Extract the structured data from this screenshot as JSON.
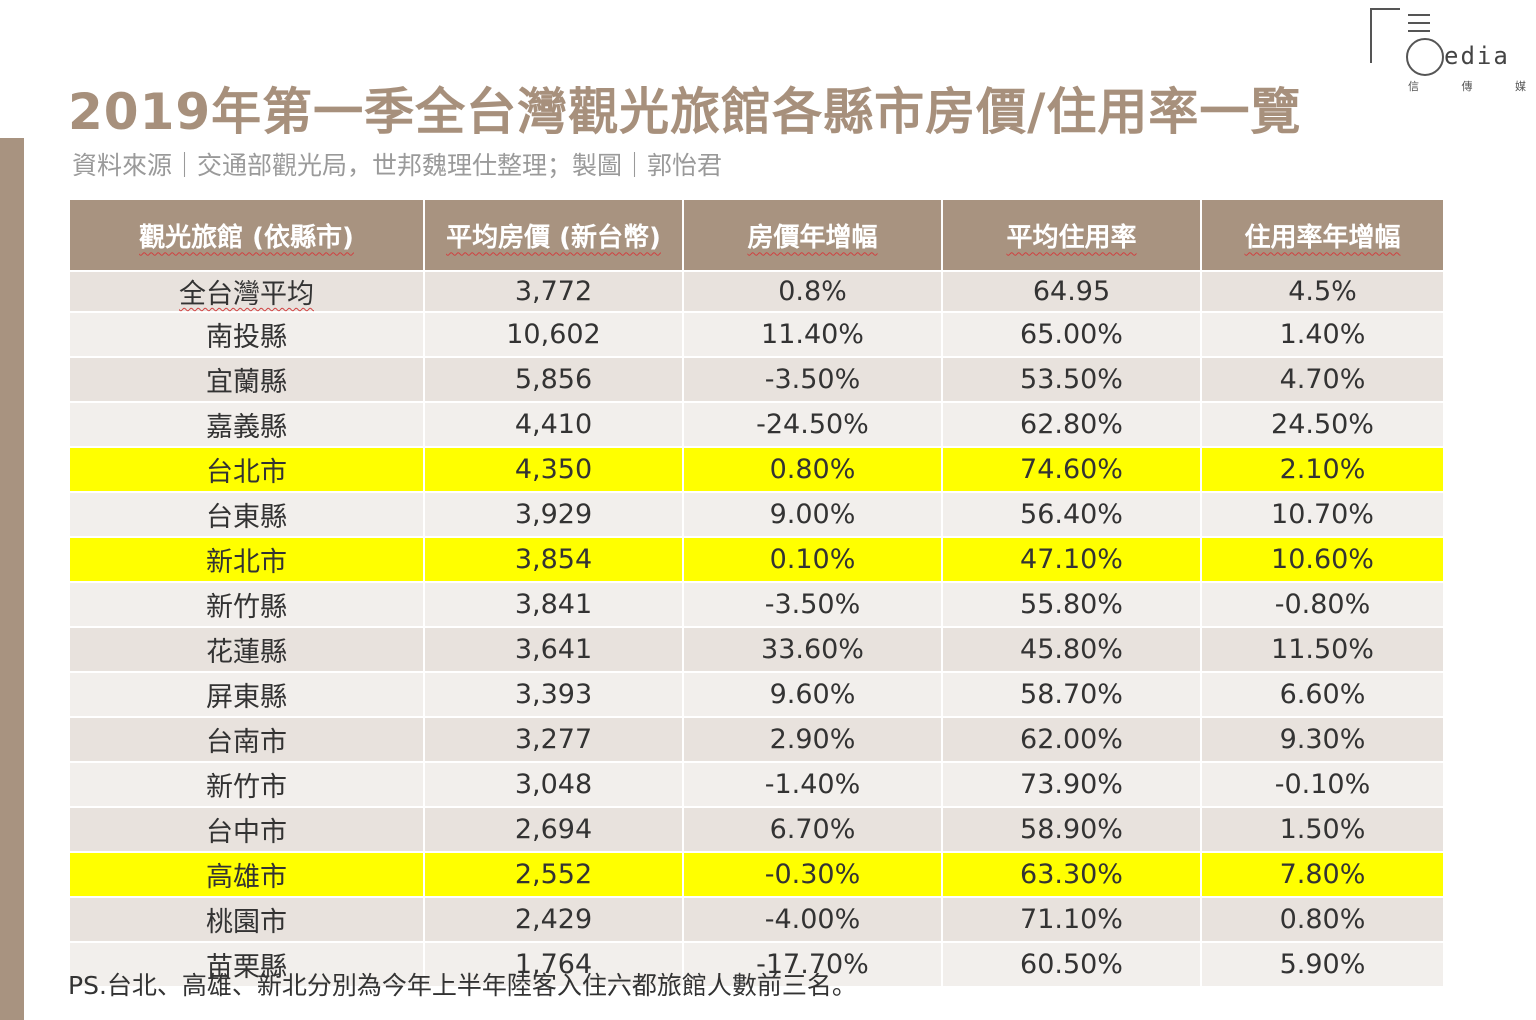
{
  "title": "2019年第一季全台灣觀光旅館各縣市房價/住用率一覽",
  "subtitle": "資料來源｜交通部觀光局，世邦魏理仕整理；製圖｜郭怡君",
  "logo": {
    "word": "edia",
    "chars": [
      "信",
      "傳",
      "媒"
    ]
  },
  "table": {
    "headers": [
      "觀光旅館 (依縣市)",
      "平均房價 (新台幣)",
      "房價年增幅",
      "平均住用率",
      "住用率年增幅"
    ],
    "rows": [
      {
        "county": "全台灣平均",
        "price": "3,772",
        "price_growth": "0.8%",
        "occupancy": "64.95",
        "occupancy_growth": "4.5%",
        "highlight": false
      },
      {
        "county": "南投縣",
        "price": "10,602",
        "price_growth": "11.40%",
        "occupancy": "65.00%",
        "occupancy_growth": "1.40%",
        "highlight": false
      },
      {
        "county": "宜蘭縣",
        "price": "5,856",
        "price_growth": "-3.50%",
        "occupancy": "53.50%",
        "occupancy_growth": "4.70%",
        "highlight": false
      },
      {
        "county": "嘉義縣",
        "price": "4,410",
        "price_growth": "-24.50%",
        "occupancy": "62.80%",
        "occupancy_growth": "24.50%",
        "highlight": false
      },
      {
        "county": "台北市",
        "price": "4,350",
        "price_growth": "0.80%",
        "occupancy": "74.60%",
        "occupancy_growth": "2.10%",
        "highlight": true
      },
      {
        "county": "台東縣",
        "price": "3,929",
        "price_growth": "9.00%",
        "occupancy": "56.40%",
        "occupancy_growth": "10.70%",
        "highlight": false
      },
      {
        "county": "新北市",
        "price": "3,854",
        "price_growth": "0.10%",
        "occupancy": "47.10%",
        "occupancy_growth": "10.60%",
        "highlight": true
      },
      {
        "county": "新竹縣",
        "price": "3,841",
        "price_growth": "-3.50%",
        "occupancy": "55.80%",
        "occupancy_growth": "-0.80%",
        "highlight": false
      },
      {
        "county": "花蓮縣",
        "price": "3,641",
        "price_growth": "33.60%",
        "occupancy": "45.80%",
        "occupancy_growth": "11.50%",
        "highlight": false
      },
      {
        "county": "屏東縣",
        "price": "3,393",
        "price_growth": "9.60%",
        "occupancy": "58.70%",
        "occupancy_growth": "6.60%",
        "highlight": false
      },
      {
        "county": "台南市",
        "price": "3,277",
        "price_growth": "2.90%",
        "occupancy": "62.00%",
        "occupancy_growth": "9.30%",
        "highlight": false
      },
      {
        "county": "新竹市",
        "price": "3,048",
        "price_growth": "-1.40%",
        "occupancy": "73.90%",
        "occupancy_growth": "-0.10%",
        "highlight": false
      },
      {
        "county": "台中市",
        "price": "2,694",
        "price_growth": "6.70%",
        "occupancy": "58.90%",
        "occupancy_growth": "1.50%",
        "highlight": false
      },
      {
        "county": "高雄市",
        "price": "2,552",
        "price_growth": "-0.30%",
        "occupancy": "63.30%",
        "occupancy_growth": "7.80%",
        "highlight": true
      },
      {
        "county": "桃園市",
        "price": "2,429",
        "price_growth": "-4.00%",
        "occupancy": "71.10%",
        "occupancy_growth": "0.80%",
        "highlight": false
      },
      {
        "county": "苗栗縣",
        "price": "1,764",
        "price_growth": "-17.70%",
        "occupancy": "60.50%",
        "occupancy_growth": "5.90%",
        "highlight": false
      }
    ]
  },
  "note": "PS.台北、高雄、新北分別為今年上半年陸客入住六都旅館人數前三名。",
  "colors": {
    "accent": "#a89380",
    "highlight": "#ffff00",
    "row_odd": "#e8e2dd",
    "row_even": "#f2efec"
  }
}
